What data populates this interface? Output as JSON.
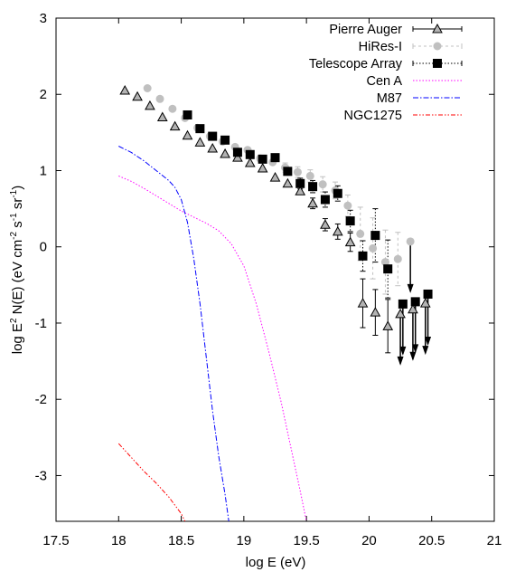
{
  "chart_data": {
    "type": "scatter",
    "xlabel": "log E (eV)",
    "ylabel_parts": [
      "log E",
      "2",
      " N(E) (eV cm",
      "-2",
      " s",
      "-1",
      " sr",
      "-1",
      ")"
    ],
    "xlim": [
      17.5,
      21
    ],
    "ylim": [
      -3.6,
      3
    ],
    "xticks": [
      "17.5",
      "18",
      "18.5",
      "19",
      "19.5",
      "20",
      "20.5",
      "21"
    ],
    "yticks": [
      "3",
      "2",
      "1",
      "0",
      "-1",
      "-2",
      "-3"
    ],
    "grid": false,
    "legend_position": "top-right",
    "series": [
      {
        "name": "Pierre Auger",
        "marker": "triangle",
        "color": "#000000",
        "marker_fill": "#b3b3b3",
        "line_style": "solid",
        "points": [
          {
            "x": 18.05,
            "y": 2.05
          },
          {
            "x": 18.15,
            "y": 1.97
          },
          {
            "x": 18.25,
            "y": 1.85
          },
          {
            "x": 18.35,
            "y": 1.7
          },
          {
            "x": 18.45,
            "y": 1.58
          },
          {
            "x": 18.55,
            "y": 1.46
          },
          {
            "x": 18.65,
            "y": 1.37
          },
          {
            "x": 18.75,
            "y": 1.29
          },
          {
            "x": 18.85,
            "y": 1.22
          },
          {
            "x": 18.95,
            "y": 1.17
          },
          {
            "x": 19.05,
            "y": 1.1
          },
          {
            "x": 19.15,
            "y": 1.03
          },
          {
            "x": 19.25,
            "y": 0.91
          },
          {
            "x": 19.35,
            "y": 0.83
          },
          {
            "x": 19.45,
            "y": 0.73
          },
          {
            "x": 19.55,
            "y": 0.57,
            "err": 0.07
          },
          {
            "x": 19.65,
            "y": 0.29,
            "err": 0.08
          },
          {
            "x": 19.75,
            "y": 0.2,
            "err": 0.1
          },
          {
            "x": 19.85,
            "y": 0.06,
            "err": 0.12
          },
          {
            "x": 19.95,
            "y": -0.74,
            "err": 0.32
          },
          {
            "x": 20.05,
            "y": -0.86,
            "err": 0.3
          },
          {
            "x": 20.15,
            "y": -1.04,
            "err": 0.35
          },
          {
            "x": 20.25,
            "y": -0.88,
            "upper_limit": true
          },
          {
            "x": 20.35,
            "y": -0.82,
            "upper_limit": true
          },
          {
            "x": 20.45,
            "y": -0.74,
            "upper_limit": true
          }
        ]
      },
      {
        "name": "HiRes-I",
        "marker": "circle",
        "color": "#c0c0c0",
        "marker_fill": "#c0c0c0",
        "line_style": "dashed",
        "points": [
          {
            "x": 18.23,
            "y": 2.08
          },
          {
            "x": 18.33,
            "y": 1.94
          },
          {
            "x": 18.43,
            "y": 1.81
          },
          {
            "x": 18.53,
            "y": 1.69
          },
          {
            "x": 18.63,
            "y": 1.56
          },
          {
            "x": 18.73,
            "y": 1.45
          },
          {
            "x": 18.83,
            "y": 1.38
          },
          {
            "x": 18.93,
            "y": 1.31
          },
          {
            "x": 19.03,
            "y": 1.27
          },
          {
            "x": 19.13,
            "y": 1.16
          },
          {
            "x": 19.23,
            "y": 1.11
          },
          {
            "x": 19.33,
            "y": 1.04,
            "err": 0.06
          },
          {
            "x": 19.43,
            "y": 0.98,
            "err": 0.07
          },
          {
            "x": 19.53,
            "y": 0.93,
            "err": 0.08
          },
          {
            "x": 19.63,
            "y": 0.82,
            "err": 0.1
          },
          {
            "x": 19.73,
            "y": 0.74,
            "err": 0.11
          },
          {
            "x": 19.83,
            "y": 0.54,
            "err": 0.14
          },
          {
            "x": 19.93,
            "y": 0.17,
            "err": 0.35
          },
          {
            "x": 20.03,
            "y": -0.02,
            "err": 0.4
          },
          {
            "x": 20.13,
            "y": -0.2,
            "err": 0.42
          },
          {
            "x": 20.23,
            "y": -0.16,
            "err": 0.35
          },
          {
            "x": 20.33,
            "y": 0.07,
            "upper_limit": true
          }
        ]
      },
      {
        "name": "Telescope Array",
        "marker": "square",
        "color": "#000000",
        "marker_fill": "#000000",
        "line_style": "dotted",
        "points": [
          {
            "x": 18.55,
            "y": 1.73
          },
          {
            "x": 18.65,
            "y": 1.55
          },
          {
            "x": 18.75,
            "y": 1.45
          },
          {
            "x": 18.85,
            "y": 1.4
          },
          {
            "x": 18.95,
            "y": 1.24
          },
          {
            "x": 19.05,
            "y": 1.21
          },
          {
            "x": 19.15,
            "y": 1.15
          },
          {
            "x": 19.25,
            "y": 1.17
          },
          {
            "x": 19.35,
            "y": 0.99
          },
          {
            "x": 19.45,
            "y": 0.83,
            "err": 0.07
          },
          {
            "x": 19.55,
            "y": 0.79,
            "err": 0.08
          },
          {
            "x": 19.65,
            "y": 0.62,
            "err": 0.1
          },
          {
            "x": 19.75,
            "y": 0.7,
            "err": 0.1
          },
          {
            "x": 19.85,
            "y": 0.34,
            "err": 0.14
          },
          {
            "x": 19.95,
            "y": -0.12,
            "err": 0.2
          },
          {
            "x": 20.05,
            "y": 0.15,
            "err": 0.35
          },
          {
            "x": 20.15,
            "y": -0.29,
            "err": 0.38
          },
          {
            "x": 20.27,
            "y": -0.75,
            "upper_limit": true
          },
          {
            "x": 20.37,
            "y": -0.72,
            "upper_limit": true
          },
          {
            "x": 20.47,
            "y": -0.62,
            "upper_limit": true
          }
        ]
      },
      {
        "name": "Cen A",
        "marker": "none",
        "color": "#ff00ff",
        "line_style": "dotted",
        "points": [
          {
            "x": 18.0,
            "y": 0.93
          },
          {
            "x": 18.1,
            "y": 0.86
          },
          {
            "x": 18.2,
            "y": 0.77
          },
          {
            "x": 18.3,
            "y": 0.67
          },
          {
            "x": 18.4,
            "y": 0.57
          },
          {
            "x": 18.5,
            "y": 0.47
          },
          {
            "x": 18.6,
            "y": 0.39
          },
          {
            "x": 18.7,
            "y": 0.31
          },
          {
            "x": 18.8,
            "y": 0.21
          },
          {
            "x": 18.9,
            "y": 0.04
          },
          {
            "x": 19.0,
            "y": -0.25
          },
          {
            "x": 19.1,
            "y": -0.75
          },
          {
            "x": 19.2,
            "y": -1.38
          },
          {
            "x": 19.3,
            "y": -2.05
          },
          {
            "x": 19.4,
            "y": -2.82
          },
          {
            "x": 19.45,
            "y": -3.2
          },
          {
            "x": 19.5,
            "y": -3.6
          }
        ]
      },
      {
        "name": "M87",
        "marker": "none",
        "color": "#0000ff",
        "line_style": "dash-dot",
        "points": [
          {
            "x": 18.0,
            "y": 1.32
          },
          {
            "x": 18.1,
            "y": 1.24
          },
          {
            "x": 18.2,
            "y": 1.13
          },
          {
            "x": 18.3,
            "y": 1.0
          },
          {
            "x": 18.4,
            "y": 0.87
          },
          {
            "x": 18.45,
            "y": 0.78
          },
          {
            "x": 18.5,
            "y": 0.62
          },
          {
            "x": 18.55,
            "y": 0.32
          },
          {
            "x": 18.6,
            "y": -0.15
          },
          {
            "x": 18.65,
            "y": -0.75
          },
          {
            "x": 18.7,
            "y": -1.45
          },
          {
            "x": 18.75,
            "y": -2.15
          },
          {
            "x": 18.8,
            "y": -2.75
          },
          {
            "x": 18.85,
            "y": -3.25
          },
          {
            "x": 18.88,
            "y": -3.6
          }
        ]
      },
      {
        "name": "NGC1275",
        "marker": "none",
        "color": "#ff0000",
        "line_style": "dash-dot-dot",
        "points": [
          {
            "x": 18.0,
            "y": -2.58
          },
          {
            "x": 18.1,
            "y": -2.76
          },
          {
            "x": 18.2,
            "y": -2.94
          },
          {
            "x": 18.3,
            "y": -3.1
          },
          {
            "x": 18.4,
            "y": -3.28
          },
          {
            "x": 18.5,
            "y": -3.5
          },
          {
            "x": 18.53,
            "y": -3.6
          }
        ]
      }
    ]
  }
}
